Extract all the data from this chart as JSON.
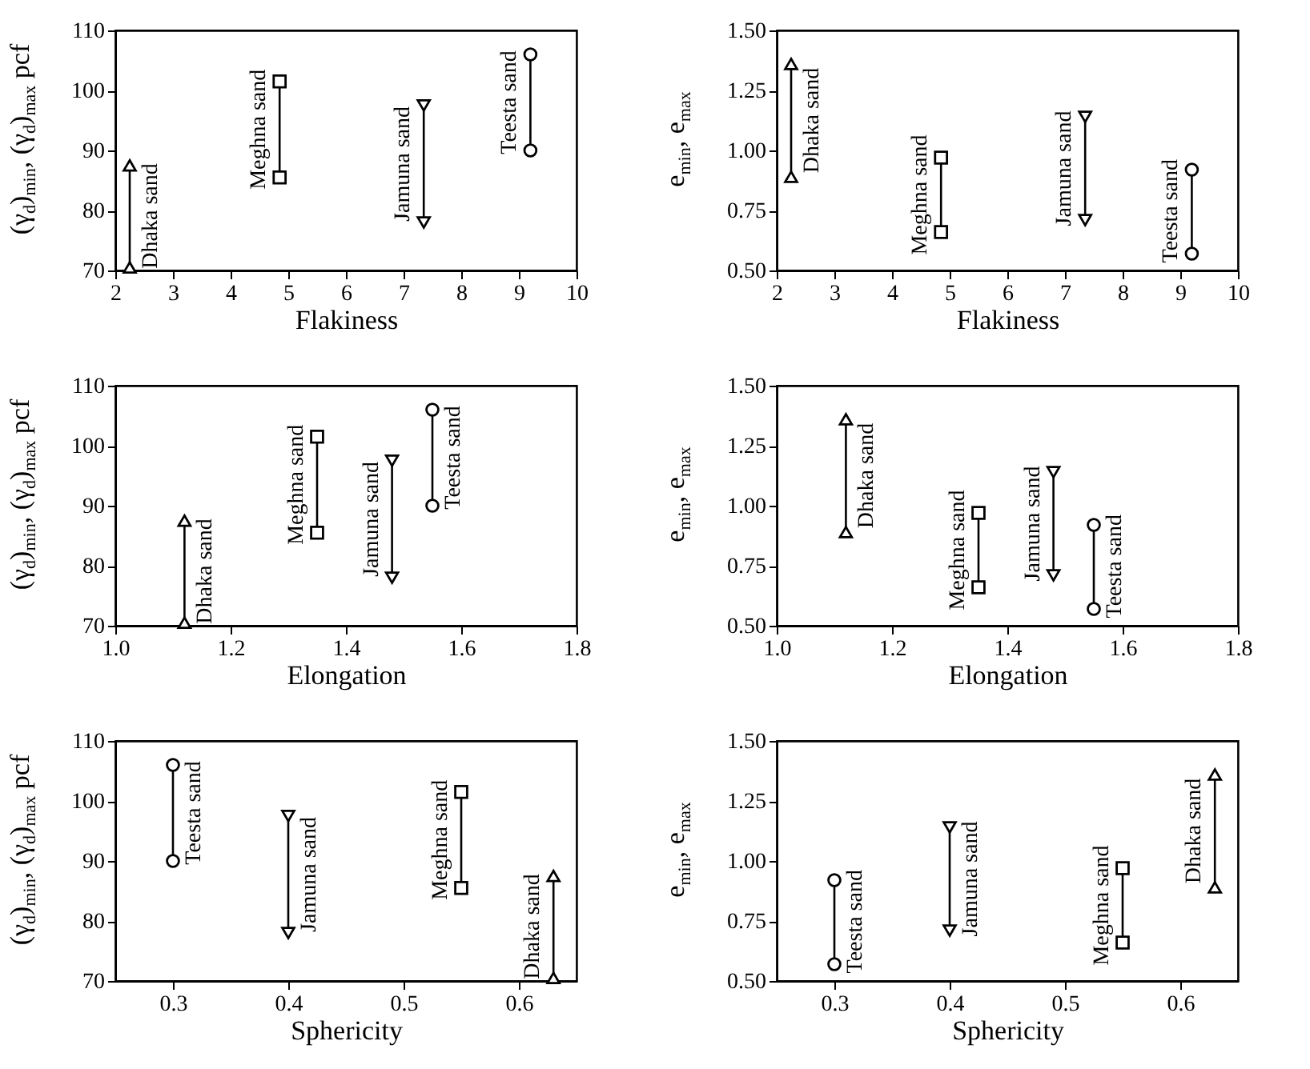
{
  "chart_data": [
    {
      "type": "line",
      "xlabel": "Flakiness",
      "ylabel": "(γ$_{d}$)$_{min}$, (γ$_{d}$)$_{max}$ pcf",
      "xlim": [
        2,
        10
      ],
      "xticks": [
        2,
        3,
        4,
        5,
        6,
        7,
        8,
        9,
        10
      ],
      "ylim": [
        70,
        110
      ],
      "yticks": [
        70,
        80,
        90,
        100,
        110
      ],
      "series": [
        {
          "name": "Dhaka sand",
          "color": "#000000",
          "marker": "triangle",
          "x": [
            2.25,
            2.25
          ],
          "values": [
            70.5,
            87.5
          ]
        },
        {
          "name": "Meghna sand",
          "color": "#000000",
          "marker": "square",
          "x": [
            4.85,
            4.85
          ],
          "values": [
            85.5,
            101.5
          ]
        },
        {
          "name": "Jamuna sand",
          "color": "#000000",
          "marker": "triangle-down",
          "x": [
            7.35,
            7.35
          ],
          "values": [
            78,
            97.5
          ]
        },
        {
          "name": "Teesta sand",
          "color": "#000000",
          "marker": "circle",
          "x": [
            9.2,
            9.2
          ],
          "values": [
            90,
            106
          ]
        }
      ]
    },
    {
      "type": "line",
      "xlabel": "Flakiness",
      "ylabel": "e$_{min}$, e$_{max}$",
      "xlim": [
        2,
        10
      ],
      "xticks": [
        2,
        3,
        4,
        5,
        6,
        7,
        8,
        9,
        10
      ],
      "ylim": [
        0.5,
        1.5
      ],
      "yticks": [
        {
          "value": 0.5,
          "label": "0.50"
        },
        {
          "value": 0.75,
          "label": "0.75"
        },
        {
          "value": 1,
          "label": "1.00"
        },
        {
          "value": 1.25,
          "label": "1.25"
        },
        {
          "value": 1.5,
          "label": "1.50"
        }
      ],
      "series": [
        {
          "name": "Dhaka sand",
          "color": "#000000",
          "marker": "triangle",
          "x": [
            2.25,
            2.25
          ],
          "values": [
            0.89,
            1.36
          ]
        },
        {
          "name": "Meghna sand",
          "color": "#000000",
          "marker": "square",
          "x": [
            4.85,
            4.85
          ],
          "values": [
            0.66,
            0.97
          ]
        },
        {
          "name": "Jamuna sand",
          "color": "#000000",
          "marker": "triangle-down",
          "x": [
            7.35,
            7.35
          ],
          "values": [
            0.71,
            1.14
          ]
        },
        {
          "name": "Teesta sand",
          "color": "#000000",
          "marker": "circle",
          "x": [
            9.2,
            9.2
          ],
          "values": [
            0.57,
            0.92
          ]
        }
      ]
    },
    {
      "type": "line",
      "xlabel": "Elongation",
      "ylabel": "(γ$_{d}$)$_{min}$, (γ$_{d}$)$_{max}$ pcf",
      "xlim": [
        1,
        1.8
      ],
      "xticks": [
        {
          "value": 1,
          "label": "1.0"
        },
        1.2,
        1.4,
        1.6,
        1.8
      ],
      "ylim": [
        70,
        110
      ],
      "yticks": [
        70,
        80,
        90,
        100,
        110
      ],
      "series": [
        {
          "name": "Dhaka sand",
          "color": "#000000",
          "marker": "triangle",
          "x": [
            1.12,
            1.12
          ],
          "values": [
            70.5,
            87.5
          ]
        },
        {
          "name": "Meghna sand",
          "color": "#000000",
          "marker": "square",
          "x": [
            1.35,
            1.35
          ],
          "values": [
            85.5,
            101.5
          ]
        },
        {
          "name": "Jamuna sand",
          "color": "#000000",
          "marker": "triangle-down",
          "x": [
            1.48,
            1.48
          ],
          "values": [
            78,
            97.5
          ]
        },
        {
          "name": "Teesta sand",
          "color": "#000000",
          "marker": "circle",
          "x": [
            1.55,
            1.55
          ],
          "values": [
            90,
            106
          ]
        }
      ]
    },
    {
      "type": "line",
      "xlabel": "Elongation",
      "ylabel": "e$_{min}$, e$_{max}$",
      "xlim": [
        1,
        1.8
      ],
      "xticks": [
        {
          "value": 1,
          "label": "1.0"
        },
        1.2,
        1.4,
        1.6,
        1.8
      ],
      "ylim": [
        0.5,
        1.5
      ],
      "yticks": [
        {
          "value": 0.5,
          "label": "0.50"
        },
        {
          "value": 0.75,
          "label": "0.75"
        },
        {
          "value": 1,
          "label": "1.00"
        },
        {
          "value": 1.25,
          "label": "1.25"
        },
        {
          "value": 1.5,
          "label": "1.50"
        }
      ],
      "series": [
        {
          "name": "Dhaka sand",
          "color": "#000000",
          "marker": "triangle",
          "x": [
            1.12,
            1.12
          ],
          "values": [
            0.89,
            1.36
          ]
        },
        {
          "name": "Meghna sand",
          "color": "#000000",
          "marker": "square",
          "x": [
            1.35,
            1.35
          ],
          "values": [
            0.66,
            0.97
          ]
        },
        {
          "name": "Jamuna sand",
          "color": "#000000",
          "marker": "triangle-down",
          "x": [
            1.48,
            1.48
          ],
          "values": [
            0.71,
            1.14
          ]
        },
        {
          "name": "Teesta sand",
          "color": "#000000",
          "marker": "circle",
          "x": [
            1.55,
            1.55
          ],
          "values": [
            0.57,
            0.92
          ]
        }
      ]
    },
    {
      "type": "line",
      "xlabel": "Sphericity",
      "ylabel": "(γ$_{d}$)$_{min}$, (γ$_{d}$)$_{max}$ pcf",
      "xlim": [
        0.25,
        0.65
      ],
      "xticks": [
        0.3,
        0.4,
        0.5,
        0.6
      ],
      "ylim": [
        70,
        110
      ],
      "yticks": [
        70,
        80,
        90,
        100,
        110
      ],
      "series": [
        {
          "name": "Teesta sand",
          "color": "#000000",
          "marker": "circle",
          "x": [
            0.3,
            0.3
          ],
          "values": [
            90,
            106
          ]
        },
        {
          "name": "Jamuna sand",
          "color": "#000000",
          "marker": "triangle-down",
          "x": [
            0.4,
            0.4
          ],
          "values": [
            78,
            97.5
          ]
        },
        {
          "name": "Meghna sand",
          "color": "#000000",
          "marker": "square",
          "x": [
            0.55,
            0.55
          ],
          "values": [
            85.5,
            101.5
          ]
        },
        {
          "name": "Dhaka sand",
          "color": "#000000",
          "marker": "triangle",
          "x": [
            0.63,
            0.63
          ],
          "values": [
            70.5,
            87.5
          ]
        }
      ]
    },
    {
      "type": "line",
      "xlabel": "Sphericity",
      "ylabel": "e$_{min}$, e$_{max}$",
      "xlim": [
        0.25,
        0.65
      ],
      "xticks": [
        0.3,
        0.4,
        0.5,
        0.6
      ],
      "ylim": [
        0.5,
        1.5
      ],
      "yticks": [
        {
          "value": 0.5,
          "label": "0.50"
        },
        {
          "value": 0.75,
          "label": "0.75"
        },
        {
          "value": 1,
          "label": "1.00"
        },
        {
          "value": 1.25,
          "label": "1.25"
        },
        {
          "value": 1.5,
          "label": "1.50"
        }
      ],
      "series": [
        {
          "name": "Teesta sand",
          "color": "#000000",
          "marker": "circle",
          "x": [
            0.3,
            0.3
          ],
          "values": [
            0.57,
            0.92
          ]
        },
        {
          "name": "Jamuna sand",
          "color": "#000000",
          "marker": "triangle-down",
          "x": [
            0.4,
            0.4
          ],
          "values": [
            0.71,
            1.14
          ]
        },
        {
          "name": "Meghna sand",
          "color": "#000000",
          "marker": "square",
          "x": [
            0.55,
            0.55
          ],
          "values": [
            0.66,
            0.97
          ]
        },
        {
          "name": "Dhaka sand",
          "color": "#000000",
          "marker": "triangle",
          "x": [
            0.63,
            0.63
          ],
          "values": [
            0.89,
            1.36
          ]
        }
      ]
    }
  ]
}
